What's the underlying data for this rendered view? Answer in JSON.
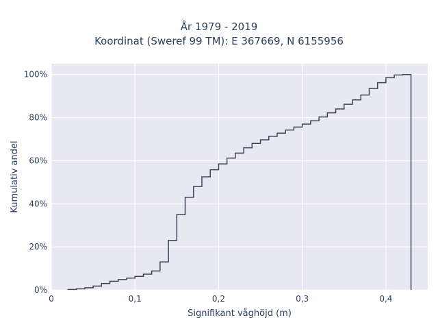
{
  "chart_data": {
    "type": "line",
    "title_line1": "År 1979 - 2019",
    "title_line2": "Koordinat (Sweref 99 TM): E 367669, N 6155956",
    "xlabel": "Signifikant våghöjd (m)",
    "ylabel": "Kumulativ andel",
    "xlim": [
      0,
      0.45
    ],
    "ylim": [
      0,
      1.05
    ],
    "x_ticks": [
      0,
      0.1,
      0.2,
      0.3,
      0.4
    ],
    "x_tick_labels": [
      "0",
      "0,1",
      "0,2",
      "0,3",
      "0,4"
    ],
    "y_ticks": [
      0,
      0.2,
      0.4,
      0.6,
      0.8,
      1.0
    ],
    "y_tick_labels": [
      "0%",
      "20%",
      "40%",
      "60%",
      "80%",
      "100%"
    ],
    "grid": true,
    "background": "#e8e8f0",
    "line_color": "#3c4658",
    "series": [
      {
        "step_edges": [
          0.02,
          0.03,
          0.04,
          0.05,
          0.06,
          0.07,
          0.08,
          0.09,
          0.1,
          0.11,
          0.12,
          0.13,
          0.14,
          0.15,
          0.16,
          0.17,
          0.18,
          0.19,
          0.2,
          0.21,
          0.22,
          0.23,
          0.24,
          0.25,
          0.26,
          0.27,
          0.28,
          0.29,
          0.3,
          0.31,
          0.32,
          0.33,
          0.34,
          0.35,
          0.36,
          0.37,
          0.38,
          0.39,
          0.4,
          0.41,
          0.42,
          0.43
        ],
        "cumulative": [
          0.002,
          0.005,
          0.01,
          0.018,
          0.03,
          0.04,
          0.048,
          0.055,
          0.063,
          0.073,
          0.088,
          0.13,
          0.23,
          0.35,
          0.43,
          0.48,
          0.525,
          0.558,
          0.585,
          0.612,
          0.635,
          0.66,
          0.68,
          0.697,
          0.713,
          0.728,
          0.742,
          0.756,
          0.77,
          0.785,
          0.803,
          0.822,
          0.84,
          0.862,
          0.882,
          0.905,
          0.935,
          0.962,
          0.985,
          0.998,
          1.0
        ]
      }
    ]
  }
}
